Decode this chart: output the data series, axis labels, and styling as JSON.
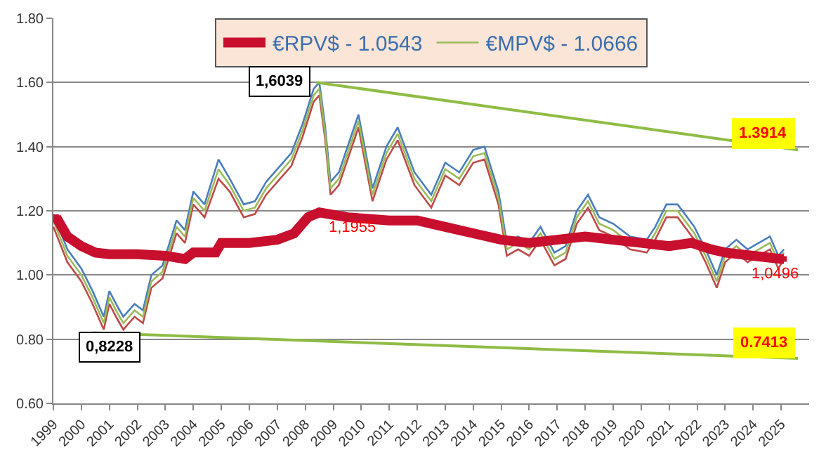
{
  "chart_data": {
    "type": "line",
    "legend": "top",
    "grid": "y",
    "xlim": [
      1999,
      2026
    ],
    "ylim": [
      0.6,
      1.8
    ],
    "xticks": [
      1999,
      2000,
      2001,
      2002,
      2003,
      2004,
      2005,
      2006,
      2007,
      2008,
      2009,
      2010,
      2011,
      2012,
      2013,
      2014,
      2015,
      2016,
      2017,
      2018,
      2019,
      2020,
      2021,
      2022,
      2023,
      2024,
      2025
    ],
    "yticks": [
      {
        "value": 0.6,
        "label": "0.60"
      },
      {
        "value": 0.8,
        "label": "0.80"
      },
      {
        "value": 1.0,
        "label": "1.00"
      },
      {
        "value": 1.2,
        "label": "1.20"
      },
      {
        "value": 1.4,
        "label": "1.40"
      },
      {
        "value": 1.6,
        "label": "1.60"
      },
      {
        "value": 1.8,
        "label": "1.80"
      }
    ],
    "x": [
      1999.0,
      1999.5,
      2000.0,
      2000.4,
      2000.8,
      2001.0,
      2001.3,
      2001.5,
      2001.9,
      2002.2,
      2002.5,
      2002.9,
      2003.4,
      2003.7,
      2004.0,
      2004.4,
      2004.9,
      2005.3,
      2005.8,
      2006.2,
      2006.6,
      2007.0,
      2007.5,
      2007.9,
      2008.3,
      2008.5,
      2008.7,
      2008.9,
      2009.2,
      2009.9,
      2010.4,
      2010.9,
      2011.3,
      2011.9,
      2012.5,
      2013.0,
      2013.5,
      2014.0,
      2014.4,
      2014.9,
      2015.2,
      2015.6,
      2016.0,
      2016.4,
      2016.9,
      2017.3,
      2017.7,
      2018.1,
      2018.5,
      2019.0,
      2019.6,
      2020.2,
      2020.5,
      2020.9,
      2021.3,
      2021.9,
      2022.3,
      2022.7,
      2023.0,
      2023.4,
      2023.8,
      2024.2,
      2024.6,
      2024.9,
      2025.1
    ],
    "series": [
      {
        "color": "#4a7ebb",
        "values": [
          1.19,
          1.08,
          1.02,
          0.95,
          0.87,
          0.95,
          0.9,
          0.87,
          0.91,
          0.89,
          1.0,
          1.03,
          1.17,
          1.14,
          1.26,
          1.22,
          1.36,
          1.3,
          1.22,
          1.23,
          1.29,
          1.33,
          1.38,
          1.47,
          1.58,
          1.6,
          1.47,
          1.29,
          1.32,
          1.5,
          1.27,
          1.4,
          1.46,
          1.32,
          1.25,
          1.35,
          1.32,
          1.39,
          1.4,
          1.26,
          1.1,
          1.12,
          1.1,
          1.15,
          1.07,
          1.09,
          1.2,
          1.25,
          1.18,
          1.16,
          1.12,
          1.11,
          1.15,
          1.22,
          1.22,
          1.15,
          1.08,
          1.0,
          1.08,
          1.11,
          1.08,
          1.1,
          1.12,
          1.06,
          1.08
        ]
      },
      {
        "color": "#be4b48",
        "values": [
          1.15,
          1.04,
          0.98,
          0.91,
          0.83,
          0.91,
          0.86,
          0.83,
          0.87,
          0.85,
          0.96,
          0.99,
          1.13,
          1.1,
          1.22,
          1.18,
          1.3,
          1.26,
          1.18,
          1.19,
          1.25,
          1.29,
          1.34,
          1.43,
          1.54,
          1.56,
          1.43,
          1.25,
          1.28,
          1.46,
          1.23,
          1.36,
          1.42,
          1.28,
          1.21,
          1.31,
          1.28,
          1.35,
          1.36,
          1.22,
          1.06,
          1.08,
          1.06,
          1.11,
          1.03,
          1.05,
          1.16,
          1.21,
          1.14,
          1.12,
          1.08,
          1.07,
          1.11,
          1.18,
          1.18,
          1.11,
          1.04,
          0.96,
          1.04,
          1.07,
          1.04,
          1.06,
          1.08,
          1.02,
          1.05
        ]
      },
      {
        "name": "€MPV$ - 1.0666",
        "color": "#9bbb59",
        "values": [
          1.17,
          1.06,
          1.0,
          0.93,
          0.85,
          0.93,
          0.88,
          0.85,
          0.89,
          0.87,
          0.98,
          1.01,
          1.15,
          1.12,
          1.24,
          1.2,
          1.33,
          1.28,
          1.2,
          1.21,
          1.27,
          1.31,
          1.36,
          1.45,
          1.56,
          1.58,
          1.45,
          1.27,
          1.3,
          1.48,
          1.25,
          1.38,
          1.44,
          1.3,
          1.23,
          1.33,
          1.3,
          1.37,
          1.38,
          1.24,
          1.08,
          1.1,
          1.08,
          1.13,
          1.05,
          1.07,
          1.18,
          1.23,
          1.16,
          1.14,
          1.1,
          1.09,
          1.13,
          1.2,
          1.2,
          1.13,
          1.06,
          0.98,
          1.06,
          1.09,
          1.06,
          1.08,
          1.1,
          1.04,
          1.07
        ]
      },
      {
        "name": "€RPV$ - 1.0543",
        "color": "#c8102e",
        "marker": "square",
        "x": [
          1999.1,
          1999.5,
          2000.0,
          2000.5,
          2001.0,
          2002.0,
          2003.0,
          2003.7,
          2004.0,
          2004.8,
          2005.0,
          2006.0,
          2007.0,
          2007.6,
          2008.1,
          2008.5,
          2009.5,
          2011.0,
          2012.0,
          2013.0,
          2014.0,
          2015.0,
          2016.0,
          2017.0,
          2018.0,
          2019.0,
          2020.0,
          2021.0,
          2021.8,
          2022.5,
          2023.0,
          2024.0,
          2025.0,
          2025.1
        ],
        "values": [
          1.18,
          1.12,
          1.09,
          1.07,
          1.065,
          1.065,
          1.06,
          1.05,
          1.07,
          1.07,
          1.1,
          1.1,
          1.11,
          1.13,
          1.18,
          1.195,
          1.18,
          1.17,
          1.17,
          1.15,
          1.13,
          1.11,
          1.1,
          1.11,
          1.12,
          1.11,
          1.1,
          1.09,
          1.1,
          1.08,
          1.07,
          1.06,
          1.05,
          1.05
        ]
      },
      {
        "color": "#8fbc45",
        "x": [
          2008.4,
          2025.6
        ],
        "values": [
          1.6,
          1.39
        ]
      },
      {
        "color": "#8fbc45",
        "x": [
          2000.4,
          2025.6
        ],
        "values": [
          0.82,
          0.74
        ]
      }
    ],
    "annotations": [
      {
        "text": "1,6039",
        "x": 2008.4,
        "y": 1.6039
      },
      {
        "text": "0,8228",
        "x": 2000.4,
        "y": 0.8228
      },
      {
        "text": "1,1955",
        "x": 2008.5,
        "y": 1.195
      },
      {
        "text": "1,0496",
        "x": 2025.0,
        "y": 1.05
      },
      {
        "text": "1.3914",
        "x": 2025.6,
        "y": 1.3914
      },
      {
        "text": "0.7413",
        "x": 2025.6,
        "y": 0.7413
      }
    ]
  }
}
